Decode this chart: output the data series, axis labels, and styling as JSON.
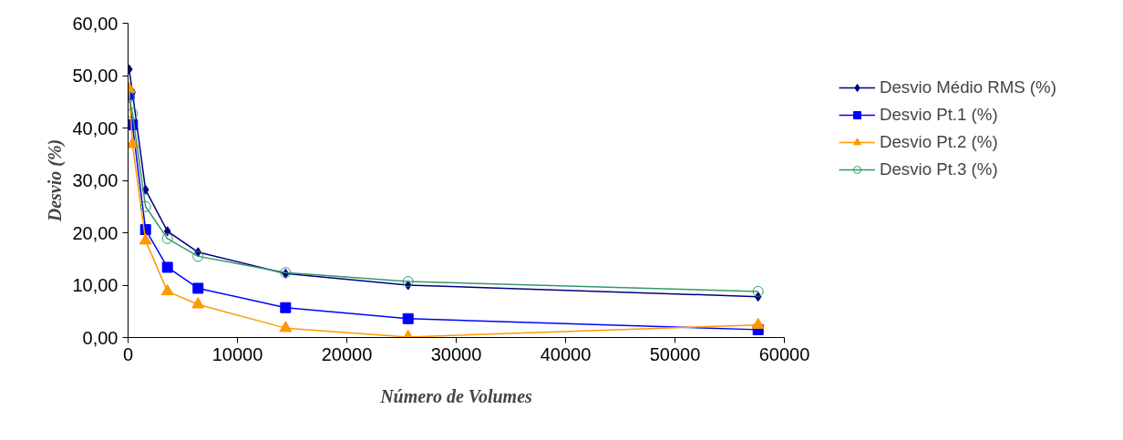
{
  "chart_data": {
    "type": "line",
    "xlabel": "Número de Volumes",
    "ylabel": "Desvio (%)",
    "x": [
      100,
      400,
      1600,
      3600,
      6400,
      14400,
      25600,
      57600
    ],
    "series": [
      {
        "name": "Desvio Médio RMS (%)",
        "color": "#000080",
        "marker": "diamond",
        "values": [
          51.2,
          46.8,
          28.2,
          20.3,
          16.3,
          12.2,
          10.0,
          7.8
        ]
      },
      {
        "name": "Desvio Pt.1 (%)",
        "color": "#0000ff",
        "marker": "square",
        "values": [
          46.4,
          40.6,
          20.6,
          13.4,
          9.4,
          5.7,
          3.6,
          1.5
        ]
      },
      {
        "name": "Desvio Pt.2 (%)",
        "color": "#ff9900",
        "marker": "triangle",
        "values": [
          47.4,
          36.9,
          18.5,
          8.8,
          6.3,
          1.8,
          0.1,
          2.4
        ]
      },
      {
        "name": "Desvio Pt.3 (%)",
        "color": "#339966",
        "marker": "circle",
        "values": [
          45.9,
          42.8,
          25.0,
          18.9,
          15.5,
          12.4,
          10.7,
          8.8
        ]
      }
    ],
    "xlim": [
      0,
      60000
    ],
    "xticks": [
      0,
      10000,
      20000,
      30000,
      40000,
      50000,
      60000
    ],
    "ylim": [
      0,
      60
    ],
    "yticks": [
      {
        "value": 0,
        "label": "0,00"
      },
      {
        "value": 10,
        "label": "10,00"
      },
      {
        "value": 20,
        "label": "20,00"
      },
      {
        "value": 30,
        "label": "30,00"
      },
      {
        "value": 40,
        "label": "40,00"
      },
      {
        "value": 50,
        "label": "50,00"
      },
      {
        "value": 60,
        "label": "60,00"
      }
    ],
    "grid": false,
    "legend": "right",
    "line_style": "solid"
  }
}
